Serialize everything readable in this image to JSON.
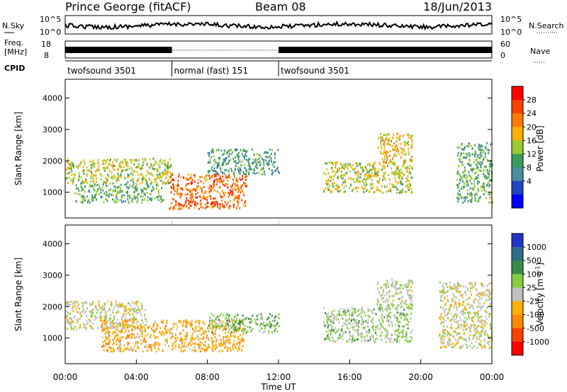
{
  "header": {
    "station": "Prince George (fitACF)",
    "beam": "Beam 08",
    "date": "18/Jun/2013"
  },
  "panels": {
    "noise": {
      "left_label": "N.Sky",
      "right_label": "N.Search",
      "ticks_left": [
        "10^5",
        "10^0"
      ],
      "ticks_right": [
        "10^5",
        "10^0"
      ],
      "sky_color": "#000000"
    },
    "freq": {
      "left_label_top": "Freq.",
      "left_label_bottom": "[MHz]",
      "ticks_left": [
        "18",
        "8"
      ],
      "ticks_right": [
        "60",
        "0"
      ],
      "right_label": "Nave",
      "bar_color": "#000000"
    },
    "cpid": {
      "label": "CPID",
      "segments": [
        {
          "label": "twofsound 3501",
          "start_h": 0,
          "end_h": 6
        },
        {
          "label": "normal (fast) 151",
          "start_h": 6,
          "end_h": 12
        },
        {
          "label": "twofsound 3501",
          "start_h": 12,
          "end_h": 24
        }
      ]
    },
    "power": {
      "ylabel": "Slant Range [km]",
      "yticks": [
        "4000",
        "3000",
        "2000",
        "1000"
      ],
      "cbar_label": "Power [dB]",
      "cbar_ticks": [
        "28",
        "24",
        "20",
        "16",
        "12",
        "8",
        "4"
      ],
      "cbar_colors": [
        "#ff0000",
        "#ff4000",
        "#ff7b00",
        "#ffb000",
        "#99cc33",
        "#3c9c5c",
        "#4a8ea0",
        "#2244c0",
        "#0000ff"
      ]
    },
    "velocity": {
      "ylabel": "Slant Range [km]",
      "yticks": [
        "4000",
        "3000",
        "2000",
        "1000"
      ],
      "cbar_label": "Velocity [m s",
      "cbar_label_sup": "-1",
      "cbar_label_end": "]",
      "cbar_ticks": [
        "1000",
        "500",
        "100",
        "25",
        "-25",
        "-100",
        "-500",
        "-1000"
      ],
      "cbar_colors": [
        "#2233cc",
        "#2f6e8a",
        "#3a8a4a",
        "#88cc44",
        "#c0c0c0",
        "#ffb000",
        "#ff8800",
        "#ff4000",
        "#ff0000"
      ]
    }
  },
  "xaxis": {
    "label": "Time UT",
    "ticks": [
      "00:00",
      "04:00",
      "08:00",
      "12:00",
      "16:00",
      "20:00",
      "00:00"
    ]
  },
  "chart_data": [
    {
      "type": "heatmap",
      "title": "",
      "quantity": "Power",
      "xlabel": "Time UT",
      "ylabel": "Slant Range [km]",
      "xlim_hours": [
        0,
        24
      ],
      "ylim_km": [
        180,
        4600
      ],
      "clim_db": [
        0,
        30
      ],
      "regions": [
        {
          "t0": 0.0,
          "t1": 6.0,
          "r0": 1300,
          "r1": 2100,
          "power": 16
        },
        {
          "t0": 0.5,
          "t1": 5.5,
          "r0": 700,
          "r1": 1300,
          "power": 12
        },
        {
          "t0": 5.8,
          "t1": 10.2,
          "r0": 500,
          "r1": 1600,
          "power": 24
        },
        {
          "t0": 8.0,
          "t1": 12.0,
          "r0": 1600,
          "r1": 2400,
          "power": 10
        },
        {
          "t0": 14.5,
          "t1": 19.5,
          "r0": 1000,
          "r1": 2000,
          "power": 16
        },
        {
          "t0": 17.5,
          "t1": 19.5,
          "r0": 2000,
          "r1": 2900,
          "power": 18
        },
        {
          "t0": 22.0,
          "t1": 24.0,
          "r0": 700,
          "r1": 2600,
          "power": 12
        }
      ]
    },
    {
      "type": "heatmap",
      "title": "",
      "quantity": "Velocity",
      "xlabel": "Time UT",
      "ylabel": "Slant Range [km]",
      "xlim_hours": [
        0,
        24
      ],
      "ylim_km": [
        180,
        4600
      ],
      "clim_ms": [
        -1000,
        1000
      ],
      "regions": [
        {
          "t0": 0.0,
          "t1": 4.5,
          "r0": 1300,
          "r1": 2200,
          "velocity": 0
        },
        {
          "t0": 2.0,
          "t1": 10.0,
          "r0": 600,
          "r1": 1600,
          "velocity": -300
        },
        {
          "t0": 8.0,
          "t1": 12.0,
          "r0": 1200,
          "r1": 1800,
          "velocity": 300
        },
        {
          "t0": 14.5,
          "t1": 19.5,
          "r0": 900,
          "r1": 2000,
          "velocity": 200
        },
        {
          "t0": 17.5,
          "t1": 19.5,
          "r0": 2000,
          "r1": 2900,
          "velocity": 100
        },
        {
          "t0": 21.0,
          "t1": 24.0,
          "r0": 700,
          "r1": 2800,
          "velocity": 0
        }
      ]
    }
  ]
}
